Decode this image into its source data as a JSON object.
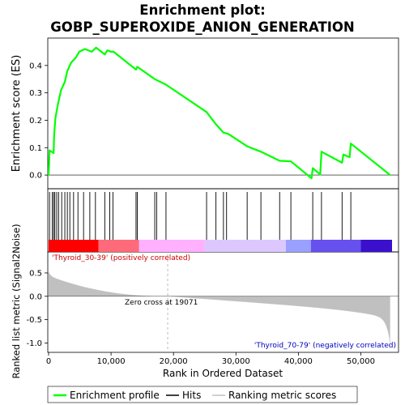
{
  "chart_data": {
    "type": "line",
    "title_lines": [
      "Enrichment plot:",
      "GOBP_SUPEROXIDE_ANION_GENERATION"
    ],
    "xlabel": "Rank in Ordered Dataset",
    "xlim": [
      0,
      55000
    ],
    "xticks": [
      0,
      10000,
      20000,
      30000,
      40000,
      50000
    ],
    "xtick_labels": [
      "0",
      "10,000",
      "20,000",
      "30,000",
      "40,000",
      "50,000"
    ],
    "top_panel": {
      "ylabel": "Enrichment score (ES)",
      "ylim": [
        -0.05,
        0.5
      ],
      "yticks": [
        0.0,
        0.1,
        0.2,
        0.3,
        0.4
      ],
      "ytick_labels": [
        "0.0",
        "0.1",
        "0.2",
        "0.3",
        "0.4"
      ],
      "series_name": "Enrichment profile",
      "color": "#00ff00",
      "es_points": [
        [
          0,
          0.0
        ],
        [
          150,
          0.09
        ],
        [
          800,
          0.08
        ],
        [
          900,
          0.15
        ],
        [
          1100,
          0.21
        ],
        [
          1500,
          0.26
        ],
        [
          2000,
          0.31
        ],
        [
          2600,
          0.34
        ],
        [
          3000,
          0.38
        ],
        [
          3600,
          0.41
        ],
        [
          4400,
          0.43
        ],
        [
          4900,
          0.45
        ],
        [
          5800,
          0.46
        ],
        [
          6900,
          0.45
        ],
        [
          7600,
          0.465
        ],
        [
          9000,
          0.44
        ],
        [
          9400,
          0.455
        ],
        [
          10000,
          0.45
        ],
        [
          10400,
          0.45
        ],
        [
          14000,
          0.385
        ],
        [
          14200,
          0.395
        ],
        [
          17000,
          0.35
        ],
        [
          18800,
          0.33
        ],
        [
          25300,
          0.23
        ],
        [
          26800,
          0.185
        ],
        [
          28000,
          0.155
        ],
        [
          28800,
          0.15
        ],
        [
          31800,
          0.105
        ],
        [
          34000,
          0.085
        ],
        [
          37000,
          0.052
        ],
        [
          38800,
          0.05
        ],
        [
          42100,
          -0.012
        ],
        [
          42300,
          0.025
        ],
        [
          43500,
          0.002
        ],
        [
          43700,
          0.085
        ],
        [
          47000,
          0.045
        ],
        [
          47200,
          0.075
        ],
        [
          48200,
          0.065
        ],
        [
          48400,
          0.115
        ],
        [
          54700,
          0.0
        ]
      ]
    },
    "hits": [
      150,
      600,
      800,
      1000,
      1300,
      1600,
      2100,
      2600,
      3000,
      3400,
      4000,
      4700,
      5600,
      6600,
      7500,
      9000,
      9800,
      10300,
      14000,
      14200,
      17000,
      17300,
      18800,
      25300,
      26800,
      28000,
      28500,
      31800,
      34000,
      37000,
      38800,
      42300,
      43700,
      47000,
      48400
    ],
    "heat_bar_colors": [
      "#ff0000",
      "#ff6a7a",
      "#ffb0ff",
      "#dcc8ff",
      "#9aa0ff",
      "#6650ee",
      "#3a10cc"
    ],
    "bottom_panel": {
      "ylabel": "Ranked list metric (Signal2Noise)",
      "ylim": [
        -1.2,
        0.95
      ],
      "yticks": [
        -1.0,
        -0.5,
        0.0,
        0.5
      ],
      "ytick_labels": [
        "-1.0",
        "-0.5",
        "0.0",
        "0.5"
      ],
      "zero_cross": 19071,
      "zero_cross_label": "Zero cross at 19071",
      "pos_label": "'Thyroid_30-39' (positively correlated)",
      "neg_label": "'Thyroid_70-79' (negatively correlated)",
      "pos_color": "#cc0000",
      "neg_color": "#0000bb",
      "metric_color": "#c0c0c0"
    },
    "legend": [
      {
        "label": "Enrichment profile",
        "color": "#00ff00"
      },
      {
        "label": "Hits",
        "color": "#000000"
      },
      {
        "label": "Ranking metric scores",
        "color": "#c0c0c0"
      }
    ]
  }
}
